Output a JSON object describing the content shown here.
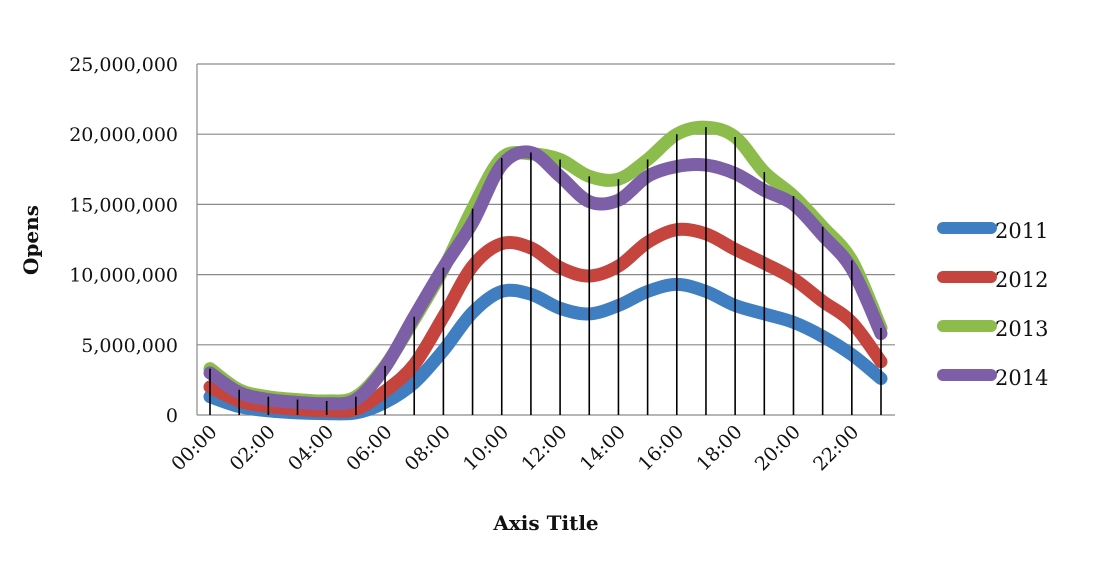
{
  "chart_data": {
    "type": "line",
    "title": "",
    "xlabel": "Axis Title",
    "ylabel": "Opens",
    "ylim": [
      0,
      25000000
    ],
    "yticks": [
      0,
      5000000,
      10000000,
      15000000,
      20000000,
      25000000
    ],
    "ytick_labels": [
      "0",
      "5,000,000",
      "10,000,000",
      "15,000,000",
      "20,000,000",
      "25,000,000"
    ],
    "x": [
      "00:00",
      "01:00",
      "02:00",
      "03:00",
      "04:00",
      "05:00",
      "06:00",
      "07:00",
      "08:00",
      "09:00",
      "10:00",
      "11:00",
      "12:00",
      "13:00",
      "14:00",
      "15:00",
      "16:00",
      "17:00",
      "18:00",
      "19:00",
      "20:00",
      "21:00",
      "22:00",
      "23:00"
    ],
    "xtick_labels": [
      "00:00",
      "02:00",
      "04:00",
      "06:00",
      "08:00",
      "10:00",
      "12:00",
      "14:00",
      "16:00",
      "18:00",
      "20:00",
      "22:00"
    ],
    "grid": "horizontal",
    "drop_lines": true,
    "legend_position": "right",
    "series": [
      {
        "name": "2011",
        "color": "#3f7fc1",
        "values": [
          1300000,
          600000,
          300000,
          150000,
          100000,
          150000,
          900000,
          2300000,
          4600000,
          7300000,
          8800000,
          8600000,
          7600000,
          7200000,
          7800000,
          8800000,
          9300000,
          8800000,
          7800000,
          7200000,
          6600000,
          5600000,
          4300000,
          2600000
        ]
      },
      {
        "name": "2012",
        "color": "#c5443e",
        "values": [
          2000000,
          1000000,
          600000,
          400000,
          300000,
          400000,
          1700000,
          3600000,
          7000000,
          10600000,
          12200000,
          11900000,
          10500000,
          9900000,
          10600000,
          12300000,
          13200000,
          12900000,
          11800000,
          10800000,
          9700000,
          8100000,
          6600000,
          3800000
        ]
      },
      {
        "name": "2013",
        "color": "#8cbd4c",
        "values": [
          3300000,
          1800000,
          1300000,
          1100000,
          1000000,
          1300000,
          3500000,
          6800000,
          10400000,
          14700000,
          18300000,
          18600000,
          18200000,
          17000000,
          16800000,
          18200000,
          20000000,
          20500000,
          19800000,
          17300000,
          15600000,
          13400000,
          11000000,
          6200000
        ]
      },
      {
        "name": "2014",
        "color": "#7c5fa6",
        "values": [
          3000000,
          1600000,
          1100000,
          900000,
          800000,
          1100000,
          3400000,
          7000000,
          10500000,
          13700000,
          17800000,
          18700000,
          17000000,
          15200000,
          15300000,
          17000000,
          17700000,
          17800000,
          17200000,
          16000000,
          15000000,
          12800000,
          10400000,
          5800000
        ]
      }
    ]
  }
}
